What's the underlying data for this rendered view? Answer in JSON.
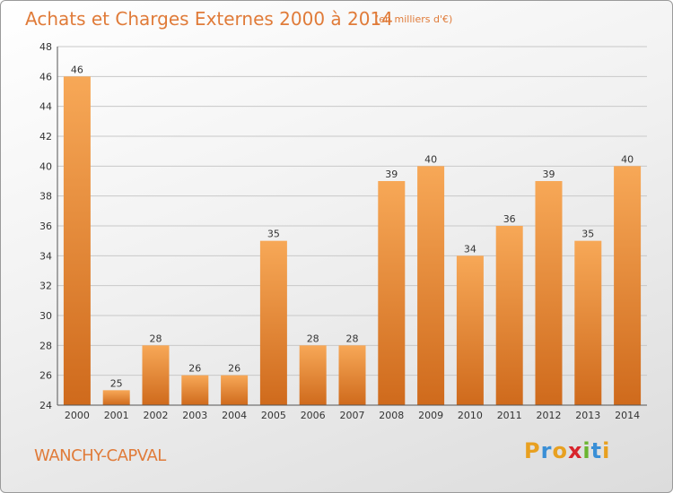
{
  "header": {
    "title": "Achats et Charges Externes 2000 à 2014",
    "unit": "(en milliers d'€)"
  },
  "footer": {
    "city": "WANCHY-CAPVAL",
    "logo": "Proxiti",
    "logo_colors": [
      "#e8a020",
      "#3a8fd6",
      "#e8a020",
      "#d8242c",
      "#6bb530",
      "#3a8fd6",
      "#e8a020"
    ]
  },
  "colors": {
    "bar_light": "#f7a857",
    "bar_dark": "#cf6a1c",
    "grid": "#c8c8c8",
    "text_accent": "#e07b39"
  },
  "chart_data": {
    "type": "bar",
    "title": "Achats et Charges Externes 2000 à 2014",
    "xlabel": "",
    "ylabel": "",
    "categories": [
      "2000",
      "2001",
      "2002",
      "2003",
      "2004",
      "2005",
      "2006",
      "2007",
      "2008",
      "2009",
      "2010",
      "2011",
      "2012",
      "2013",
      "2014"
    ],
    "values": [
      46,
      25,
      28,
      26,
      26,
      35,
      28,
      28,
      39,
      40,
      34,
      36,
      39,
      35,
      40
    ],
    "ylim": [
      24,
      48
    ],
    "yticks": [
      24,
      26,
      28,
      30,
      32,
      34,
      36,
      38,
      40,
      42,
      44,
      46,
      48
    ],
    "grid": true,
    "legend": "none"
  }
}
